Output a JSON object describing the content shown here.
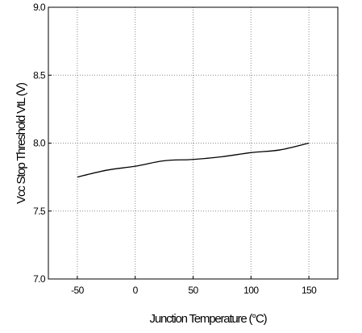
{
  "chart_data": {
    "type": "line",
    "title": "",
    "xlabel": "Junction Temperature (°C)",
    "ylabel": "Vcc Stop Threshold VtL (V)",
    "xlim": [
      -75,
      175
    ],
    "ylim": [
      7.0,
      9.0
    ],
    "xticks": [
      -50,
      0,
      50,
      100,
      150
    ],
    "yticks": [
      7.0,
      7.5,
      8.0,
      8.5,
      9.0
    ],
    "xtick_labels": [
      "-50",
      "0",
      "50",
      "100",
      "150"
    ],
    "ytick_labels": [
      "7.0",
      "7.5",
      "8.0",
      "8.5",
      "9.0"
    ],
    "grid": true,
    "legend": "none",
    "series": [
      {
        "color": "#000000",
        "x": [
          -50,
          -25,
          0,
          25,
          50,
          75,
          100,
          125,
          150
        ],
        "y": [
          7.75,
          7.8,
          7.83,
          7.87,
          7.88,
          7.9,
          7.93,
          7.95,
          8.0
        ]
      }
    ]
  }
}
